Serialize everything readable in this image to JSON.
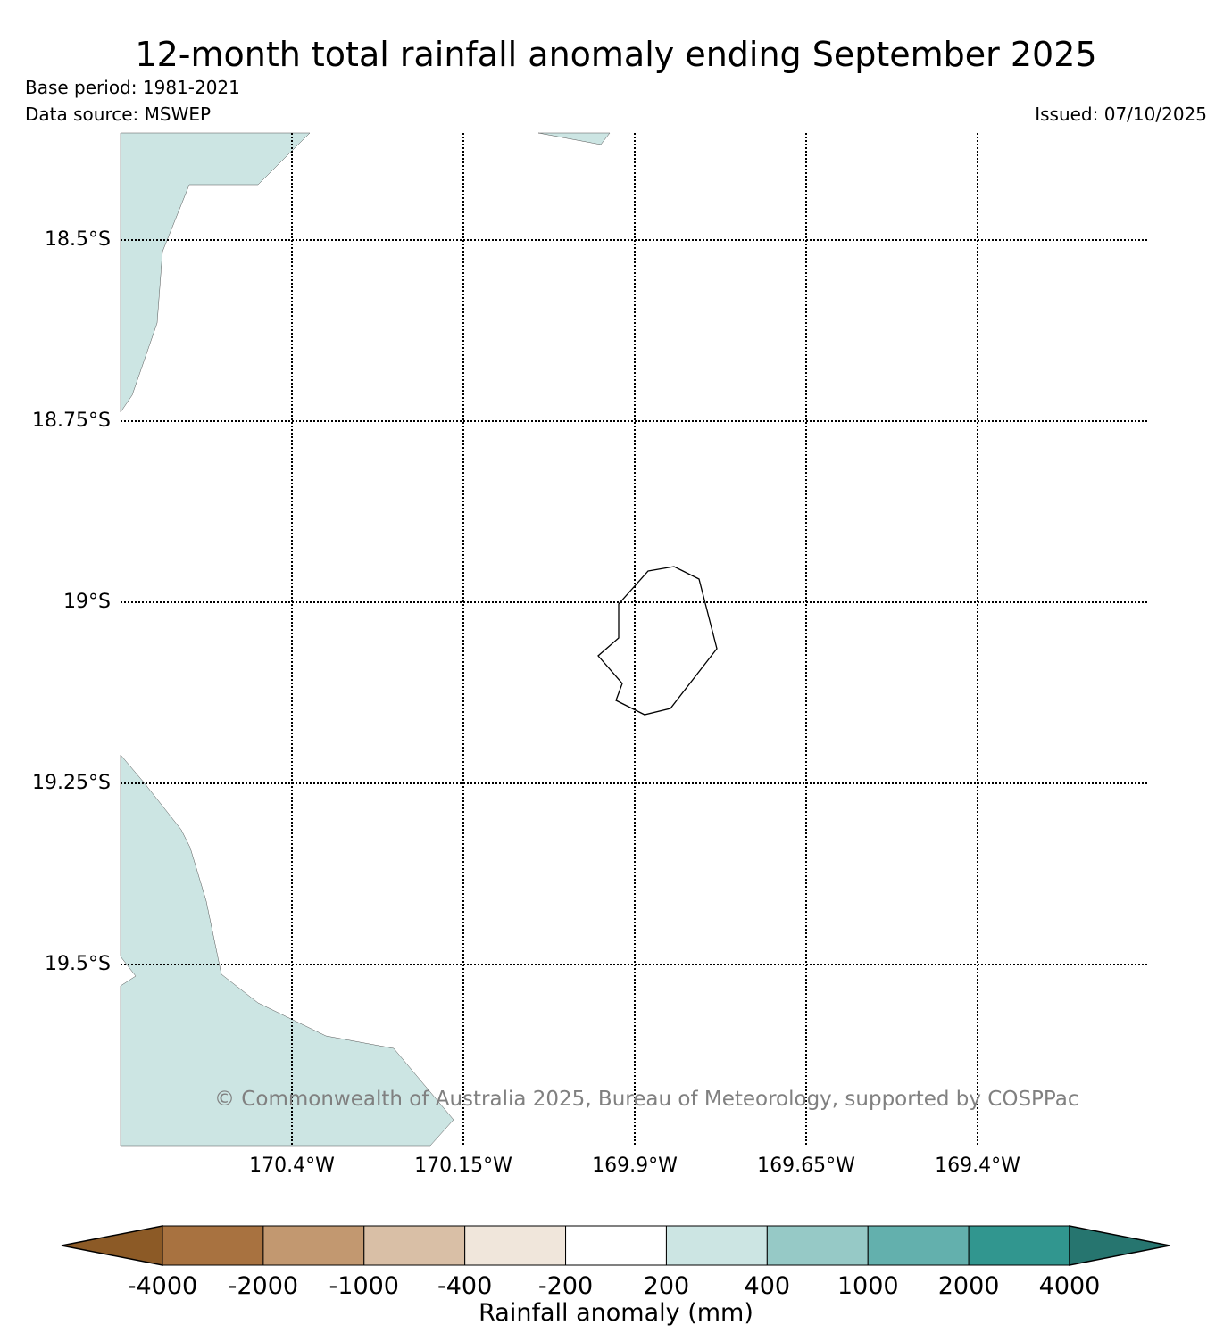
{
  "title": "12-month total rainfall anomaly ending September 2025",
  "base_period": "Base period: 1981-2021",
  "data_source": "Data source: MSWEP",
  "issued": "Issued: 07/10/2025",
  "copyright": "© Commonwealth of Australia 2025, Bureau of Meteorology, supported by COSPPac",
  "map": {
    "lat_labels": [
      "18.5°S",
      "18.75°S",
      "19°S",
      "19.25°S",
      "19.5°S"
    ],
    "lat_values": [
      -18.5,
      -18.75,
      -19.0,
      -19.25,
      -19.5
    ],
    "lon_labels": [
      "170.4°W",
      "170.15°W",
      "169.9°W",
      "169.65°W",
      "169.4°W"
    ],
    "lon_values": [
      -170.4,
      -170.15,
      -169.9,
      -169.65,
      -169.4
    ],
    "lon_range": [
      -170.65,
      -169.15
    ],
    "lat_range": [
      -18.35,
      -19.75
    ],
    "anomaly_fill_color": "#cce5e3",
    "island_outline": "Niue"
  },
  "colorbar": {
    "label": "Rainfall anomaly (mm)",
    "ticks": [
      "-4000",
      "-2000",
      "-1000",
      "-400",
      "-200",
      "200",
      "400",
      "1000",
      "2000",
      "4000"
    ],
    "colors": [
      "#8c5a26",
      "#a87240",
      "#c29870",
      "#d9bfa6",
      "#f0e6db",
      "#ffffff",
      "#cce5e3",
      "#96c9c6",
      "#63b0ad",
      "#31968f",
      "#26756f"
    ]
  }
}
